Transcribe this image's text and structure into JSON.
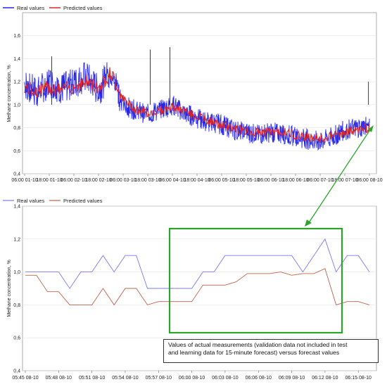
{
  "chart_data": [
    {
      "type": "line",
      "legend": [
        "Real values",
        "Predicted values"
      ],
      "legend_placement": "top-left",
      "colors": {
        "real": "#2626e6",
        "predicted": "#e32626"
      },
      "ylabel": "Methane concentration, %",
      "ylim": [
        0.4,
        1.8
      ],
      "yticks": [
        "0,4",
        "0,6",
        "0,8",
        "1,0",
        "1,2",
        "1,4",
        "1,6"
      ],
      "xticks": [
        "06:00 01-10",
        "18:00 01-10",
        "06:00 02-10",
        "18:00 02-10",
        "06:00 03-10",
        "18:00 03-10",
        "06:00 04-10",
        "18:00 04-10",
        "06:00 05-10",
        "18:00 05-10",
        "06:00 06-10",
        "18:00 06-10",
        "06:00 07-10",
        "18:00 07-10",
        "06:00 08-10"
      ],
      "x_index": [
        0,
        0.5,
        1,
        1.5,
        2,
        2.5,
        3,
        3.5,
        4,
        4.5,
        5,
        5.5,
        6,
        6.5,
        7
      ],
      "series": [
        {
          "name": "Real values",
          "levels": [
            1.18,
            1.1,
            1.2,
            1.14,
            1.18,
            1.25,
            1.12,
            1.3,
            1.0,
            0.95,
            0.92,
            0.95,
            1.0,
            0.93,
            0.88,
            0.85,
            0.83,
            0.78,
            0.76,
            0.74,
            0.76,
            0.75,
            0.72,
            0.7,
            0.68,
            0.72,
            0.78,
            0.8,
            0.82
          ]
        },
        {
          "name": "Predicted values",
          "levels": [
            1.15,
            1.12,
            1.15,
            1.13,
            1.16,
            1.2,
            1.15,
            1.28,
            1.05,
            0.96,
            0.93,
            0.95,
            0.98,
            0.94,
            0.9,
            0.86,
            0.82,
            0.8,
            0.77,
            0.76,
            0.77,
            0.76,
            0.74,
            0.72,
            0.7,
            0.73,
            0.76,
            0.78,
            0.8
          ]
        }
      ]
    },
    {
      "type": "line",
      "legend": [
        "Real values",
        "Predicted values"
      ],
      "legend_placement": "top-left",
      "colors": {
        "real": "#7a7af0",
        "predicted": "#c0604a"
      },
      "ylabel": "Methane concentration, %",
      "ylim": [
        0.4,
        1.4
      ],
      "yticks": [
        "0,4",
        "0,6",
        "0,8",
        "1,0",
        "1,2",
        "1,4"
      ],
      "xticks": [
        "05:45 08-10",
        "05:48 08-10",
        "05:51 08-10",
        "05:54 08-10",
        "05:57 08-10",
        "06:00 08-10",
        "06:03 08-10",
        "06:06 08-10",
        "06:09 08-10",
        "06:12 08-10",
        "06:15 08-10"
      ],
      "x_minutes": [
        0,
        3,
        6,
        9,
        12,
        15,
        18,
        21,
        24,
        27,
        30
      ],
      "series": [
        {
          "name": "Real values",
          "x": [
            0,
            1,
            2,
            3,
            4,
            5,
            6,
            7,
            8,
            9,
            10,
            11,
            12,
            13,
            14,
            15,
            16,
            17,
            18,
            19,
            20,
            21,
            22,
            23,
            24,
            25,
            26,
            27,
            28,
            29,
            30,
            31
          ],
          "values": [
            1.0,
            1.0,
            1.0,
            1.0,
            0.9,
            1.0,
            1.0,
            1.1,
            1.0,
            1.1,
            1.1,
            0.9,
            0.9,
            0.9,
            0.9,
            0.9,
            1.0,
            1.0,
            1.1,
            1.1,
            1.1,
            1.1,
            1.1,
            1.1,
            1.1,
            1.0,
            1.1,
            1.2,
            1.0,
            1.1,
            1.1,
            1.0
          ]
        },
        {
          "name": "Predicted values",
          "x": [
            0,
            1,
            2,
            3,
            4,
            5,
            6,
            7,
            8,
            9,
            10,
            11,
            12,
            13,
            14,
            15,
            16,
            17,
            18,
            19,
            20,
            21,
            22,
            23,
            24,
            25,
            26,
            27,
            28,
            29,
            30,
            31
          ],
          "values": [
            0.98,
            0.98,
            0.88,
            0.88,
            0.8,
            0.8,
            0.8,
            0.9,
            0.8,
            0.9,
            0.9,
            0.8,
            0.82,
            0.82,
            0.82,
            0.82,
            0.92,
            0.92,
            0.92,
            0.94,
            0.99,
            0.99,
            0.99,
            1.0,
            0.98,
            0.99,
            0.99,
            1.02,
            0.8,
            0.82,
            0.82,
            0.8
          ]
        }
      ]
    }
  ],
  "annotation": {
    "line1": "Values of actual measurements (validation data not included in test",
    "line2": "and learning data for 15-minute forecast) versus forecast values"
  },
  "highlight": {
    "color": "#2aa52a"
  }
}
